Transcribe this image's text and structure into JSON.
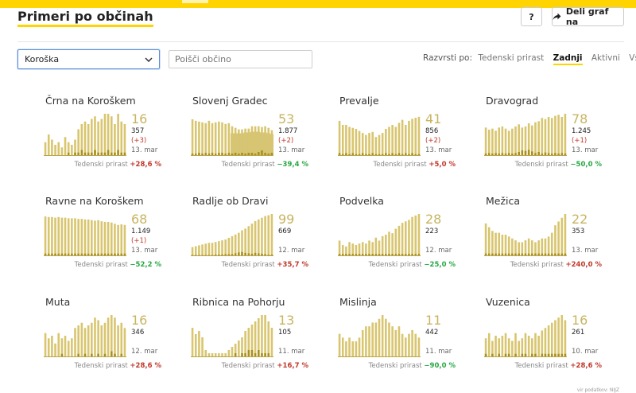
{
  "header": {
    "title": "Primeri po občinah",
    "help_label": "?",
    "share_label": "Deli graf na",
    "share_icon": "share-arrow-icon"
  },
  "controls": {
    "region_select": "Koroška",
    "search_placeholder": "Poišči občino",
    "sort_label": "Razvrsti po:",
    "sort_options": [
      "Tedenski prirast",
      "Zadnji",
      "Aktivni",
      "Vsi"
    ],
    "sort_active": "Zadnji"
  },
  "labels": {
    "growth_label": "Tedenski prirast"
  },
  "colors": {
    "accent": "#ffd400",
    "bar": "#d8c56e",
    "bar_dark": "#a8901a",
    "number": "#c8b461",
    "increase": "#c0392b",
    "decrease": "#27a844"
  },
  "source": "vir podatkov: NIJZ",
  "chart_data": [
    {
      "type": "bar",
      "title": "Črna na Koroškem",
      "active": "16",
      "total": "357",
      "delta": "(+3)",
      "date": "13. mar",
      "growth": "+28,6 %",
      "growth_dir": "up",
      "values": [
        5,
        8,
        6,
        4,
        5,
        3,
        7,
        5,
        4,
        6,
        10,
        12,
        13,
        12,
        14,
        15,
        13,
        14,
        16,
        16,
        15,
        12,
        16,
        13,
        12
      ],
      "deaths": [
        0,
        0,
        0,
        0,
        0,
        0,
        0,
        1,
        0,
        1,
        1,
        2,
        1,
        1,
        1,
        2,
        1,
        1,
        1,
        2,
        1,
        1,
        2,
        1,
        1
      ],
      "ylim": [
        0,
        16
      ]
    },
    {
      "type": "bar",
      "title": "Slovenj Gradec",
      "active": "53",
      "total": "1.877",
      "delta": "(+2)",
      "date": "13. mar",
      "growth": "−39,4 %",
      "growth_dir": "down",
      "values": [
        46,
        44,
        43,
        42,
        41,
        44,
        41,
        42,
        43,
        42,
        40,
        41,
        37,
        35,
        33,
        33,
        34,
        34,
        37,
        37,
        37,
        36,
        37,
        35,
        32
      ],
      "deaths": [
        2,
        2,
        3,
        2,
        3,
        2,
        3,
        2,
        3,
        3,
        2,
        3,
        2,
        3,
        2,
        3,
        2,
        3,
        3,
        2,
        4,
        6,
        3,
        2,
        3
      ],
      "area": [
        0,
        0,
        0,
        0,
        0,
        0,
        0,
        0,
        0,
        0,
        0,
        0,
        28,
        28,
        28,
        28,
        29,
        29,
        30,
        30,
        30,
        29,
        29,
        28,
        27
      ],
      "ylim": [
        0,
        53
      ]
    },
    {
      "type": "bar",
      "title": "Prevalje",
      "active": "41",
      "total": "856",
      "delta": "(+2)",
      "date": "13. mar",
      "growth": "+5,0 %",
      "growth_dir": "up",
      "values": [
        34,
        30,
        30,
        28,
        27,
        26,
        24,
        22,
        20,
        22,
        23,
        18,
        20,
        22,
        26,
        28,
        30,
        28,
        32,
        35,
        30,
        34,
        36,
        37,
        38
      ],
      "deaths": [
        2,
        1,
        2,
        1,
        2,
        1,
        1,
        2,
        1,
        1,
        2,
        1,
        1,
        1,
        2,
        1,
        2,
        1,
        2,
        1,
        2,
        1,
        2,
        1,
        1
      ],
      "ylim": [
        0,
        41
      ]
    },
    {
      "type": "bar",
      "title": "Dravograd",
      "active": "78",
      "total": "1.245",
      "delta": "(+1)",
      "date": "13. mar",
      "growth": "−50,0 %",
      "growth_dir": "down",
      "values": [
        52,
        48,
        50,
        46,
        52,
        54,
        50,
        46,
        50,
        54,
        58,
        52,
        54,
        60,
        56,
        62,
        64,
        70,
        68,
        72,
        70,
        74,
        76,
        72,
        78
      ],
      "deaths": [
        3,
        4,
        3,
        4,
        3,
        4,
        3,
        4,
        3,
        4,
        6,
        9,
        8,
        10,
        7,
        4,
        6,
        3,
        5,
        4,
        3,
        4,
        3,
        4,
        3
      ],
      "ylim": [
        0,
        78
      ]
    },
    {
      "type": "bar",
      "title": "Ravne na Koroškem",
      "active": "68",
      "total": "1.149",
      "delta": "(+1)",
      "date": "13. mar",
      "growth": "−52,2 %",
      "growth_dir": "down",
      "values": [
        64,
        63,
        63,
        62,
        63,
        62,
        62,
        61,
        61,
        61,
        60,
        60,
        59,
        59,
        58,
        57,
        58,
        56,
        55,
        55,
        54,
        52,
        50,
        51,
        50
      ],
      "deaths": [
        3,
        3,
        3,
        3,
        3,
        3,
        3,
        3,
        3,
        3,
        3,
        3,
        3,
        3,
        3,
        3,
        3,
        3,
        3,
        3,
        3,
        3,
        3,
        3,
        3
      ],
      "ylim": [
        0,
        68
      ]
    },
    {
      "type": "bar",
      "title": "Radlje ob Dravi",
      "active": "99",
      "total": "669",
      "delta": "",
      "date": "12. mar",
      "growth": "+35,7 %",
      "growth_dir": "up",
      "values": [
        20,
        22,
        24,
        26,
        28,
        30,
        30,
        32,
        34,
        36,
        38,
        42,
        46,
        50,
        54,
        60,
        64,
        70,
        76,
        82,
        86,
        90,
        94,
        96,
        99
      ],
      "deaths": [
        1,
        1,
        1,
        1,
        1,
        1,
        1,
        2,
        2,
        2,
        3,
        3,
        3,
        5,
        7,
        8,
        6,
        5,
        4,
        6,
        5,
        4,
        3,
        2,
        2
      ],
      "ylim": [
        0,
        99
      ]
    },
    {
      "type": "bar",
      "title": "Podvelka",
      "active": "28",
      "total": "223",
      "delta": "",
      "date": "12. mar",
      "growth": "−25,0 %",
      "growth_dir": "down",
      "values": [
        10,
        7,
        6,
        9,
        8,
        7,
        8,
        9,
        8,
        10,
        9,
        12,
        10,
        13,
        14,
        16,
        15,
        18,
        20,
        22,
        23,
        24,
        26,
        27,
        28
      ],
      "deaths": [
        1,
        1,
        1,
        1,
        1,
        1,
        1,
        1,
        1,
        1,
        1,
        1,
        1,
        1,
        1,
        1,
        1,
        1,
        1,
        1,
        1,
        1,
        1,
        1,
        1
      ],
      "ylim": [
        0,
        28
      ]
    },
    {
      "type": "bar",
      "title": "Mežica",
      "active": "22",
      "total": "353",
      "delta": "",
      "date": "13. mar",
      "growth": "+240,0 %",
      "growth_dir": "up",
      "values": [
        17,
        15,
        13,
        12,
        12,
        11,
        11,
        10,
        9,
        8,
        7,
        7,
        8,
        9,
        8,
        7,
        8,
        9,
        9,
        10,
        12,
        16,
        18,
        20,
        22
      ],
      "deaths": [
        1,
        1,
        1,
        1,
        1,
        1,
        1,
        1,
        1,
        1,
        1,
        1,
        1,
        1,
        1,
        1,
        1,
        1,
        1,
        1,
        1,
        1,
        1,
        1,
        1
      ],
      "ylim": [
        0,
        22
      ]
    },
    {
      "type": "bar",
      "title": "Muta",
      "active": "16",
      "total": "346",
      "delta": "",
      "date": "12. mar",
      "growth": "+28,6 %",
      "growth_dir": "up",
      "values": [
        9,
        7,
        8,
        5,
        9,
        7,
        8,
        6,
        7,
        11,
        12,
        13,
        11,
        12,
        13,
        15,
        14,
        12,
        13,
        15,
        16,
        15,
        12,
        13,
        11
      ],
      "deaths": [
        0,
        0,
        0,
        0,
        0,
        1,
        0,
        0,
        0,
        0,
        1,
        0,
        1,
        0,
        1,
        0,
        1,
        0,
        1,
        0,
        2,
        1,
        0,
        1,
        0
      ],
      "ylim": [
        0,
        16
      ]
    },
    {
      "type": "bar",
      "title": "Ribnica na Pohorju",
      "active": "13",
      "total": "105",
      "delta": "",
      "date": "11. mar",
      "growth": "+16,7 %",
      "growth_dir": "up",
      "values": [
        9,
        7,
        8,
        6,
        2,
        1,
        1,
        1,
        1,
        1,
        1,
        2,
        3,
        4,
        5,
        6,
        8,
        9,
        10,
        11,
        12,
        13,
        13,
        11,
        9
      ],
      "deaths": [
        0,
        0,
        0,
        0,
        0,
        0,
        0,
        0,
        0,
        0,
        0,
        0,
        0,
        1,
        0,
        1,
        1,
        2,
        2,
        1,
        2,
        1,
        1,
        1,
        0
      ],
      "ylim": [
        0,
        13
      ]
    },
    {
      "type": "bar",
      "title": "Mislinja",
      "active": "11",
      "total": "442",
      "delta": "",
      "date": "11. mar",
      "growth": "−90,0 %",
      "growth_dir": "down",
      "values": [
        6,
        5,
        4,
        5,
        4,
        4,
        5,
        7,
        8,
        8,
        9,
        9,
        10,
        11,
        10,
        9,
        8,
        7,
        8,
        6,
        5,
        6,
        7,
        6,
        5
      ],
      "deaths": [
        0,
        0,
        0,
        0,
        0,
        0,
        0,
        0,
        0,
        0,
        0,
        0,
        0,
        0,
        0,
        0,
        0,
        0,
        0,
        0,
        0,
        0,
        0,
        0,
        0
      ],
      "ylim": [
        0,
        11
      ]
    },
    {
      "type": "bar",
      "title": "Vuzenica",
      "active": "16",
      "total": "261",
      "delta": "",
      "date": "10. mar",
      "growth": "+28,6 %",
      "growth_dir": "up",
      "values": [
        7,
        9,
        6,
        8,
        7,
        8,
        9,
        7,
        6,
        9,
        6,
        7,
        9,
        8,
        7,
        9,
        8,
        10,
        11,
        12,
        13,
        14,
        15,
        16,
        14
      ],
      "deaths": [
        1,
        0,
        1,
        0,
        1,
        0,
        1,
        1,
        0,
        1,
        0,
        1,
        1,
        0,
        1,
        1,
        0,
        1,
        1,
        1,
        1,
        1,
        1,
        1,
        1
      ],
      "ylim": [
        0,
        16
      ]
    }
  ]
}
